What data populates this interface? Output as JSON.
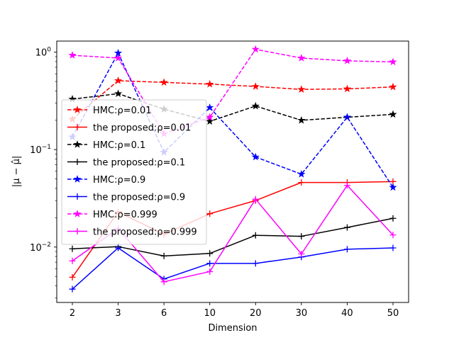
{
  "chart_data": {
    "type": "line",
    "xlabel": "Dimension",
    "ylabel": "|μ − μ̂|",
    "yscale": "log",
    "ylim": [
      0.0027,
      1.3
    ],
    "categories": [
      "2",
      "3",
      "6",
      "10",
      "20",
      "30",
      "40",
      "50"
    ],
    "y_ticks": [
      {
        "value": 0.01,
        "base": "10",
        "exp": "−2"
      },
      {
        "value": 0.1,
        "base": "10",
        "exp": "−1"
      },
      {
        "value": 1,
        "base": "10",
        "exp": "0"
      }
    ],
    "legend_position": "upper-left",
    "series": [
      {
        "name": "HMC:ρ=0.01",
        "color": "#ff0000",
        "style": "dashed",
        "marker": "star",
        "values": [
          0.205,
          0.51,
          0.49,
          0.47,
          0.445,
          0.415,
          0.42,
          0.44
        ]
      },
      {
        "name": "the proposed:ρ=0.01",
        "color": "#ff0000",
        "style": "solid",
        "marker": "plus",
        "values": [
          0.0049,
          0.023,
          0.0135,
          0.022,
          0.03,
          0.046,
          0.046,
          0.047
        ]
      },
      {
        "name": "HMC:ρ=0.1",
        "color": "#000000",
        "style": "dashed",
        "marker": "star",
        "values": [
          0.33,
          0.375,
          0.26,
          0.195,
          0.28,
          0.2,
          0.215,
          0.23
        ]
      },
      {
        "name": "the proposed:ρ=0.1",
        "color": "#000000",
        "style": "solid",
        "marker": "plus",
        "values": [
          0.0096,
          0.0101,
          0.0081,
          0.0086,
          0.0132,
          0.0129,
          0.0159,
          0.0197
        ]
      },
      {
        "name": "HMC:ρ=0.9",
        "color": "#0000ff",
        "style": "dashed",
        "marker": "star",
        "values": [
          0.135,
          0.98,
          0.094,
          0.27,
          0.084,
          0.056,
          0.215,
          0.041
        ]
      },
      {
        "name": "the proposed:ρ=0.9",
        "color": "#0000ff",
        "style": "solid",
        "marker": "plus",
        "values": [
          0.0037,
          0.0098,
          0.0047,
          0.0068,
          0.0068,
          0.0079,
          0.0095,
          0.0098
        ]
      },
      {
        "name": "HMC:ρ=0.999",
        "color": "#ff00ff",
        "style": "dashed",
        "marker": "star",
        "values": [
          0.93,
          0.87,
          0.145,
          0.215,
          1.07,
          0.87,
          0.815,
          0.795
        ]
      },
      {
        "name": "the proposed:ρ=0.999",
        "color": "#ff00ff",
        "style": "solid",
        "marker": "plus",
        "values": [
          0.0072,
          0.0155,
          0.0044,
          0.0056,
          0.031,
          0.0085,
          0.043,
          0.0133
        ]
      }
    ]
  }
}
